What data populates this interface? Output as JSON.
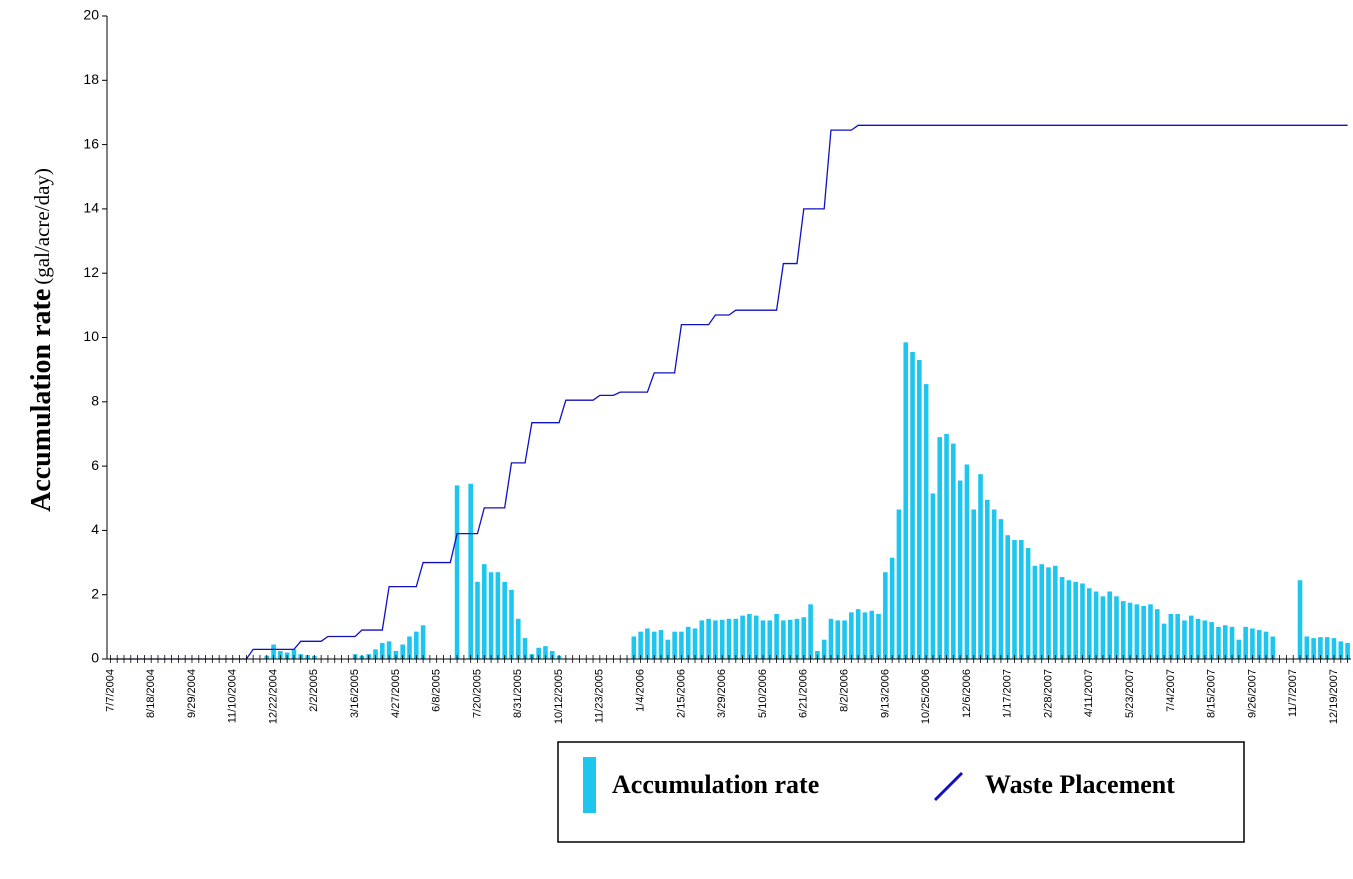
{
  "chart_data": {
    "type": "bar_line",
    "y_label": "Accumulation rate",
    "y_label_unit": "(gal/acre/day)",
    "ylim": [
      0,
      20
    ],
    "yticks": [
      0,
      2,
      4,
      6,
      8,
      10,
      12,
      14,
      16,
      18,
      20
    ],
    "legend": "bottom",
    "categories": [
      "7/7/2004",
      null,
      null,
      null,
      null,
      null,
      "8/18/2004",
      null,
      null,
      null,
      null,
      null,
      "9/29/2004",
      null,
      null,
      null,
      null,
      null,
      "11/10/2004",
      null,
      null,
      null,
      null,
      null,
      "12/22/2004",
      null,
      null,
      null,
      null,
      null,
      "2/2/2005",
      null,
      null,
      null,
      null,
      null,
      "3/16/2005",
      null,
      null,
      null,
      null,
      null,
      "4/27/2005",
      null,
      null,
      null,
      null,
      null,
      "6/8/2005",
      null,
      null,
      null,
      null,
      null,
      "7/20/2005",
      null,
      null,
      null,
      null,
      null,
      "8/31/2005",
      null,
      null,
      null,
      null,
      null,
      "10/12/2005",
      null,
      null,
      null,
      null,
      null,
      "11/23/2005",
      null,
      null,
      null,
      null,
      null,
      "1/4/2006",
      null,
      null,
      null,
      null,
      null,
      "2/15/2006",
      null,
      null,
      null,
      null,
      null,
      "3/29/2006",
      null,
      null,
      null,
      null,
      null,
      "5/10/2006",
      null,
      null,
      null,
      null,
      null,
      "6/21/2006",
      null,
      null,
      null,
      null,
      null,
      "8/2/2006",
      null,
      null,
      null,
      null,
      null,
      "9/13/2006",
      null,
      null,
      null,
      null,
      null,
      "10/25/2006",
      null,
      null,
      null,
      null,
      null,
      "12/6/2006",
      null,
      null,
      null,
      null,
      null,
      "1/17/2007",
      null,
      null,
      null,
      null,
      null,
      "2/28/2007",
      null,
      null,
      null,
      null,
      null,
      "4/11/2007",
      null,
      null,
      null,
      null,
      null,
      "5/23/2007",
      null,
      null,
      null,
      null,
      null,
      "7/4/2007",
      null,
      null,
      null,
      null,
      null,
      "8/15/2007",
      null,
      null,
      null,
      null,
      null,
      "9/26/2007",
      null,
      null,
      null,
      null,
      null,
      "11/7/2007",
      null,
      null,
      null,
      null,
      null,
      "12/19/2007",
      null,
      null
    ],
    "series": [
      {
        "name": "Accumulation rate",
        "type": "bar",
        "color": "#1ec6ef",
        "values": [
          0,
          0,
          0,
          0,
          0,
          0,
          0,
          0,
          0,
          0,
          0,
          0,
          0,
          0,
          0,
          0,
          0,
          0,
          0,
          0,
          0,
          0,
          0,
          0.1,
          0.45,
          0.25,
          0.2,
          0.3,
          0.15,
          0.12,
          0.1,
          0,
          0,
          0,
          0,
          0,
          0.15,
          0.1,
          0.15,
          0.3,
          0.5,
          0.55,
          0.25,
          0.45,
          0.7,
          0.85,
          1.05,
          0,
          0,
          0,
          0,
          5.4,
          0,
          5.45,
          2.4,
          2.95,
          2.7,
          2.7,
          2.4,
          2.15,
          1.25,
          0.65,
          0.15,
          0.35,
          0.4,
          0.25,
          0.1,
          0,
          0,
          0,
          0,
          0,
          0,
          0,
          0,
          0,
          0,
          0.7,
          0.85,
          0.95,
          0.85,
          0.9,
          0.6,
          0.85,
          0.85,
          1.0,
          0.95,
          1.2,
          1.25,
          1.2,
          1.22,
          1.25,
          1.25,
          1.35,
          1.4,
          1.35,
          1.2,
          1.2,
          1.4,
          1.2,
          1.22,
          1.25,
          1.3,
          1.7,
          0.25,
          0.6,
          1.25,
          1.2,
          1.2,
          1.45,
          1.55,
          1.45,
          1.5,
          1.4,
          2.7,
          3.15,
          4.65,
          9.85,
          9.55,
          9.3,
          8.55,
          5.15,
          6.9,
          7.0,
          6.7,
          5.55,
          6.05,
          4.65,
          5.75,
          4.95,
          4.65,
          4.35,
          3.85,
          3.7,
          3.7,
          3.45,
          2.9,
          2.95,
          2.85,
          2.9,
          2.55,
          2.45,
          2.4,
          2.35,
          2.2,
          2.1,
          1.95,
          2.1,
          1.95,
          1.8,
          1.75,
          1.7,
          1.65,
          1.7,
          1.55,
          1.1,
          1.4,
          1.4,
          1.2,
          1.35,
          1.25,
          1.2,
          1.15,
          1.0,
          1.05,
          1.0,
          0.6,
          1.0,
          0.95,
          0.9,
          0.85,
          0.7,
          0,
          0,
          0,
          2.45,
          0.7,
          0.65,
          0.68,
          0.68,
          0.65,
          0.55,
          0.5
        ]
      },
      {
        "name": "Waste Placement",
        "type": "line",
        "color": "#1010c0",
        "values": [
          0,
          0,
          0,
          0,
          0,
          0,
          0,
          0,
          0,
          0,
          0,
          0,
          0,
          0,
          0,
          0,
          0,
          0,
          0,
          0,
          0,
          0.3,
          0.3,
          0.3,
          0.3,
          0.3,
          0.3,
          0.3,
          0.55,
          0.55,
          0.55,
          0.55,
          0.7,
          0.7,
          0.7,
          0.7,
          0.7,
          0.9,
          0.9,
          0.9,
          0.9,
          2.25,
          2.25,
          2.25,
          2.25,
          2.25,
          3.0,
          3.0,
          3.0,
          3.0,
          3.0,
          3.9,
          3.9,
          3.9,
          3.9,
          4.7,
          4.7,
          4.7,
          4.7,
          6.1,
          6.1,
          6.1,
          7.35,
          7.35,
          7.35,
          7.35,
          7.35,
          8.05,
          8.05,
          8.05,
          8.05,
          8.05,
          8.2,
          8.2,
          8.2,
          8.3,
          8.3,
          8.3,
          8.3,
          8.3,
          8.9,
          8.9,
          8.9,
          8.9,
          10.4,
          10.4,
          10.4,
          10.4,
          10.4,
          10.7,
          10.7,
          10.7,
          10.85,
          10.85,
          10.85,
          10.85,
          10.85,
          10.85,
          10.85,
          12.3,
          12.3,
          12.3,
          14.0,
          14.0,
          14.0,
          14.0,
          16.45,
          16.45,
          16.45,
          16.45,
          16.6,
          16.6,
          16.6,
          16.6,
          16.6,
          16.6,
          16.6,
          16.6,
          16.6,
          16.6,
          16.6,
          16.6,
          16.6,
          16.6,
          16.6,
          16.6,
          16.6,
          16.6,
          16.6,
          16.6,
          16.6,
          16.6,
          16.6,
          16.6,
          16.6,
          16.6,
          16.6,
          16.6,
          16.6,
          16.6,
          16.6,
          16.6,
          16.6,
          16.6,
          16.6,
          16.6,
          16.6,
          16.6,
          16.6,
          16.6,
          16.6,
          16.6,
          16.6,
          16.6,
          16.6,
          16.6,
          16.6,
          16.6,
          16.6,
          16.6,
          16.6,
          16.6,
          16.6,
          16.6,
          16.6,
          16.6,
          16.6,
          16.6,
          16.6,
          16.6,
          16.6,
          16.6,
          16.6,
          16.6,
          16.6,
          16.6,
          16.6,
          16.6,
          16.6,
          16.6,
          16.6,
          16.6,
          16.6
        ]
      }
    ]
  }
}
